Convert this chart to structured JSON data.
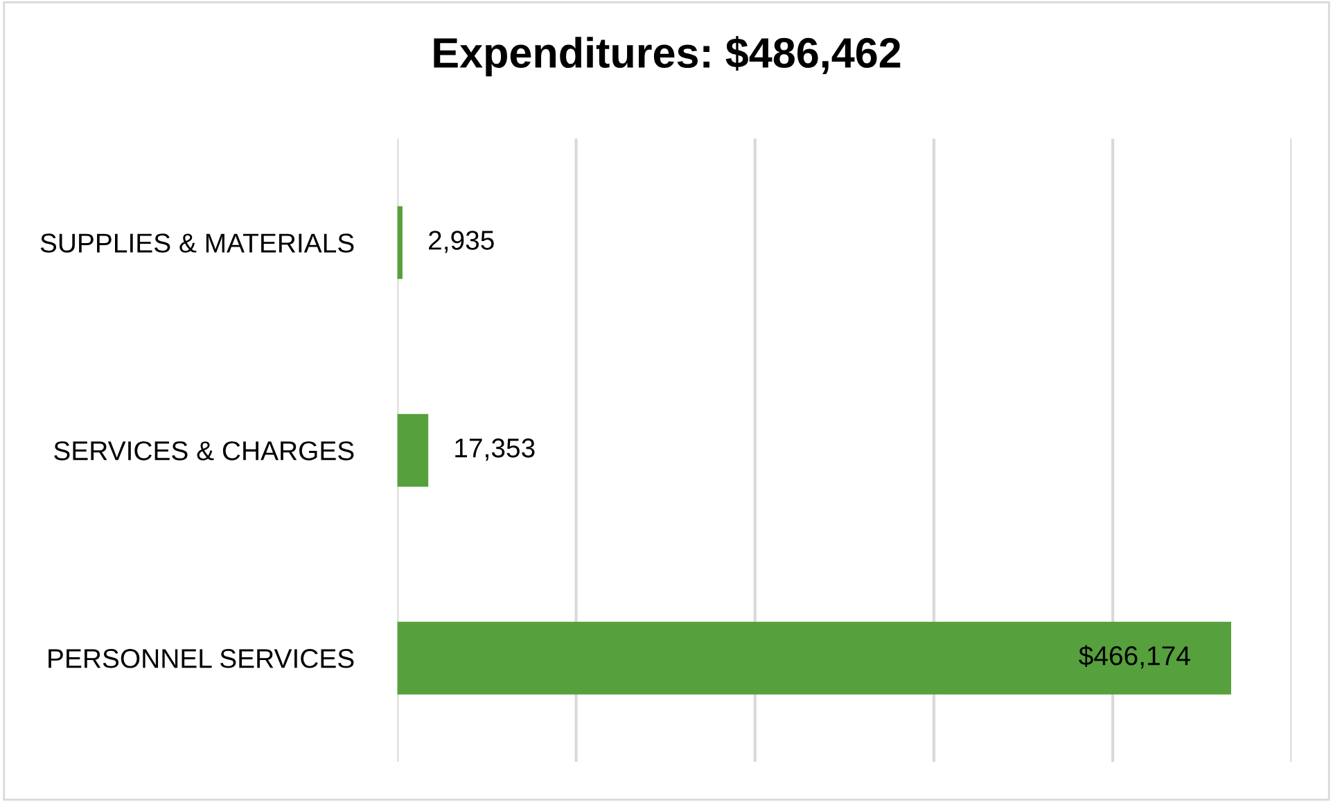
{
  "chart_data": {
    "type": "bar",
    "orientation": "horizontal",
    "title": "Expenditures: $486,462",
    "categories": [
      "SUPPLIES & MATERIALS",
      "SERVICES & CHARGES",
      "PERSONNEL SERVICES"
    ],
    "values": [
      2935,
      17353,
      466174
    ],
    "value_labels": [
      "2,935",
      "17,353",
      "$466,174"
    ],
    "color": "#56a03d",
    "xlim": [
      0,
      500000
    ],
    "xticks": [
      {
        "value": 0,
        "label": null
      },
      {
        "value": 100000,
        "label": null
      },
      {
        "value": 200000,
        "label": null
      },
      {
        "value": 300000,
        "label": null
      },
      {
        "value": 400000,
        "label": null
      },
      {
        "value": 500000,
        "label": null
      }
    ],
    "grid": "x",
    "tick_labels": "y",
    "legend": false
  }
}
